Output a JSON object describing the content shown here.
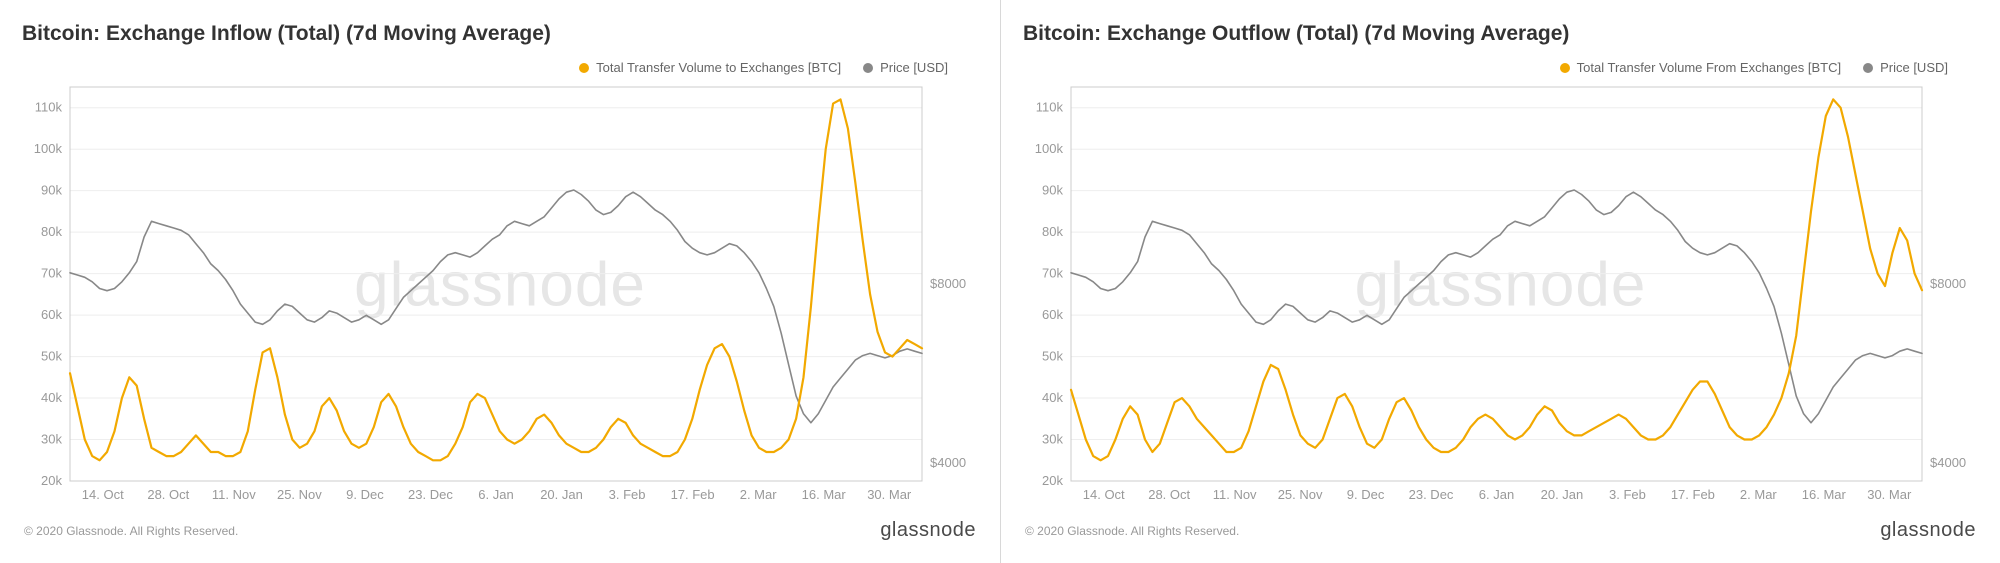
{
  "watermark": "glassnode",
  "brand": "glassnode",
  "copyright": "© 2020 Glassnode. All Rights Reserved.",
  "colors": {
    "volume": "#f2a900",
    "price": "#888888",
    "grid": "#eeeeee",
    "axis": "#cccccc",
    "text": "#999999",
    "title": "#333333",
    "bg": "#ffffff"
  },
  "x_labels": [
    "14. Oct",
    "28. Oct",
    "11. Nov",
    "25. Nov",
    "9. Dec",
    "23. Dec",
    "6. Jan",
    "20. Jan",
    "3. Feb",
    "17. Feb",
    "2. Mar",
    "16. Mar",
    "30. Mar"
  ],
  "y_ticks_left": [
    20,
    30,
    40,
    50,
    60,
    70,
    80,
    90,
    100,
    110
  ],
  "y_tick_suffix": "k",
  "y_ticks_right": [
    4000,
    8000
  ],
  "y_right_prefix": "$",
  "left_axis_min": 20,
  "left_axis_max": 115,
  "right_axis_min": 3600,
  "right_axis_max": 12400,
  "line_width_volume": 2.2,
  "line_width_price": 1.6,
  "panels": [
    {
      "title": "Bitcoin: Exchange Inflow (Total) (7d Moving Average)",
      "legend_volume": "Total Transfer Volume to Exchanges [BTC]",
      "legend_price": "Price [USD]",
      "volume": [
        46,
        38,
        30,
        26,
        25,
        27,
        32,
        40,
        45,
        43,
        35,
        28,
        27,
        26,
        26,
        27,
        29,
        31,
        29,
        27,
        27,
        26,
        26,
        27,
        32,
        42,
        51,
        52,
        45,
        36,
        30,
        28,
        29,
        32,
        38,
        40,
        37,
        32,
        29,
        28,
        29,
        33,
        39,
        41,
        38,
        33,
        29,
        27,
        26,
        25,
        25,
        26,
        29,
        33,
        39,
        41,
        40,
        36,
        32,
        30,
        29,
        30,
        32,
        35,
        36,
        34,
        31,
        29,
        28,
        27,
        27,
        28,
        30,
        33,
        35,
        34,
        31,
        29,
        28,
        27,
        26,
        26,
        27,
        30,
        35,
        42,
        48,
        52,
        53,
        50,
        44,
        37,
        31,
        28,
        27,
        27,
        28,
        30,
        35,
        45,
        62,
        82,
        100,
        111,
        112,
        105,
        92,
        78,
        65,
        56,
        51,
        50,
        52,
        54,
        53,
        52
      ],
      "price": [
        8250,
        8200,
        8150,
        8050,
        7900,
        7850,
        7900,
        8050,
        8250,
        8500,
        9050,
        9400,
        9350,
        9300,
        9250,
        9200,
        9100,
        8900,
        8700,
        8450,
        8300,
        8100,
        7850,
        7550,
        7350,
        7150,
        7100,
        7200,
        7400,
        7550,
        7500,
        7350,
        7200,
        7150,
        7250,
        7400,
        7350,
        7250,
        7150,
        7200,
        7300,
        7200,
        7100,
        7200,
        7450,
        7700,
        7850,
        8000,
        8150,
        8300,
        8500,
        8650,
        8700,
        8650,
        8600,
        8700,
        8850,
        9000,
        9100,
        9300,
        9400,
        9350,
        9300,
        9400,
        9500,
        9700,
        9900,
        10050,
        10100,
        10000,
        9850,
        9650,
        9550,
        9600,
        9750,
        9950,
        10050,
        9950,
        9800,
        9650,
        9550,
        9400,
        9200,
        8950,
        8800,
        8700,
        8650,
        8700,
        8800,
        8900,
        8850,
        8700,
        8500,
        8250,
        7900,
        7500,
        6900,
        6200,
        5500,
        5100,
        4900,
        5100,
        5400,
        5700,
        5900,
        6100,
        6300,
        6400,
        6450,
        6400,
        6350,
        6400,
        6500,
        6550,
        6500,
        6450
      ]
    },
    {
      "title": "Bitcoin: Exchange Outflow (Total) (7d Moving Average)",
      "legend_volume": "Total Transfer Volume From Exchanges [BTC]",
      "legend_price": "Price [USD]",
      "volume": [
        42,
        36,
        30,
        26,
        25,
        26,
        30,
        35,
        38,
        36,
        30,
        27,
        29,
        34,
        39,
        40,
        38,
        35,
        33,
        31,
        29,
        27,
        27,
        28,
        32,
        38,
        44,
        48,
        47,
        42,
        36,
        31,
        29,
        28,
        30,
        35,
        40,
        41,
        38,
        33,
        29,
        28,
        30,
        35,
        39,
        40,
        37,
        33,
        30,
        28,
        27,
        27,
        28,
        30,
        33,
        35,
        36,
        35,
        33,
        31,
        30,
        31,
        33,
        36,
        38,
        37,
        34,
        32,
        31,
        31,
        32,
        33,
        34,
        35,
        36,
        35,
        33,
        31,
        30,
        30,
        31,
        33,
        36,
        39,
        42,
        44,
        44,
        41,
        37,
        33,
        31,
        30,
        30,
        31,
        33,
        36,
        40,
        46,
        55,
        70,
        85,
        98,
        108,
        112,
        110,
        103,
        94,
        85,
        76,
        70,
        67,
        75,
        81,
        78,
        70,
        66
      ],
      "price": [
        8250,
        8200,
        8150,
        8050,
        7900,
        7850,
        7900,
        8050,
        8250,
        8500,
        9050,
        9400,
        9350,
        9300,
        9250,
        9200,
        9100,
        8900,
        8700,
        8450,
        8300,
        8100,
        7850,
        7550,
        7350,
        7150,
        7100,
        7200,
        7400,
        7550,
        7500,
        7350,
        7200,
        7150,
        7250,
        7400,
        7350,
        7250,
        7150,
        7200,
        7300,
        7200,
        7100,
        7200,
        7450,
        7700,
        7850,
        8000,
        8150,
        8300,
        8500,
        8650,
        8700,
        8650,
        8600,
        8700,
        8850,
        9000,
        9100,
        9300,
        9400,
        9350,
        9300,
        9400,
        9500,
        9700,
        9900,
        10050,
        10100,
        10000,
        9850,
        9650,
        9550,
        9600,
        9750,
        9950,
        10050,
        9950,
        9800,
        9650,
        9550,
        9400,
        9200,
        8950,
        8800,
        8700,
        8650,
        8700,
        8800,
        8900,
        8850,
        8700,
        8500,
        8250,
        7900,
        7500,
        6900,
        6200,
        5500,
        5100,
        4900,
        5100,
        5400,
        5700,
        5900,
        6100,
        6300,
        6400,
        6450,
        6400,
        6350,
        6400,
        6500,
        6550,
        6500,
        6450
      ]
    }
  ]
}
